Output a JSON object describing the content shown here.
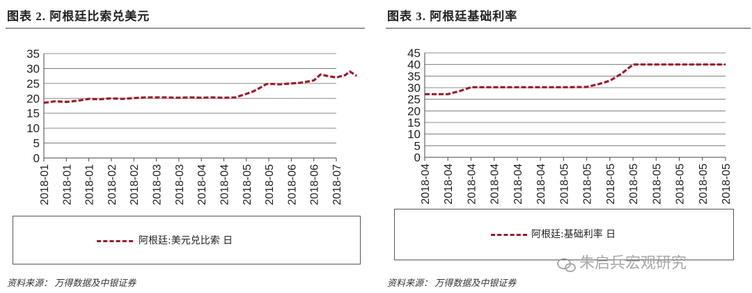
{
  "left": {
    "title": "图表 2. 阿根廷比索兑美元",
    "source": "资料来源： 万得数据及中银证券",
    "legend": "阿根廷:美元兑比索 日"
  },
  "right": {
    "title": "图表 3. 阿根廷基础利率",
    "source": "资料来源： 万得数据及中银证券",
    "legend": "阿根廷:基础利率 日"
  },
  "watermark": "朱启兵宏观研究",
  "chart_data": [
    {
      "type": "line",
      "title": "图表 2. 阿根廷比索兑美元",
      "ylim": [
        0,
        35
      ],
      "yticks": [
        0,
        5,
        10,
        15,
        20,
        25,
        30,
        35
      ],
      "xticks": [
        "2018-01",
        "2018-01",
        "2018-01",
        "2018-02",
        "2018-02",
        "2018-03",
        "2018-03",
        "2018-04",
        "2018-04",
        "2018-05",
        "2018-05",
        "2018-06",
        "2018-06",
        "2018-07"
      ],
      "grid": true,
      "legend_position": "bottom",
      "series": [
        {
          "name": "阿根廷:美元兑比索 日",
          "color": "#9b1b2a",
          "x": [
            0,
            0.5,
            1,
            1.5,
            2,
            2.5,
            3,
            3.5,
            4,
            4.5,
            5,
            5.5,
            6,
            6.5,
            7,
            7.5,
            8,
            8.5,
            9,
            9.3,
            9.6,
            9.9,
            10.2,
            10.5,
            11,
            11.4,
            11.7,
            12,
            12.3,
            12.6,
            13,
            13.4,
            13.6,
            13.9
          ],
          "values": [
            18.5,
            19.0,
            18.8,
            19.2,
            19.8,
            19.7,
            20.0,
            19.8,
            20.1,
            20.3,
            20.3,
            20.3,
            20.2,
            20.3,
            20.2,
            20.3,
            20.2,
            20.3,
            21.5,
            22.3,
            23.5,
            24.8,
            24.8,
            24.7,
            25.0,
            25.2,
            25.6,
            26.0,
            28.0,
            27.5,
            27.0,
            27.8,
            29.0,
            27.5
          ]
        }
      ]
    },
    {
      "type": "line",
      "title": "图表 3. 阿根廷基础利率",
      "ylim": [
        0,
        45
      ],
      "yticks": [
        0,
        5,
        10,
        15,
        20,
        25,
        30,
        35,
        40,
        45
      ],
      "xticks": [
        "2018-04",
        "2018-04",
        "2018-04",
        "2018-04",
        "2018-04",
        "2018-04",
        "2018-05",
        "2018-05",
        "2018-05",
        "2018-05",
        "2018-05",
        "2018-05",
        "2018-05",
        "2018-05"
      ],
      "grid": true,
      "legend_position": "bottom",
      "series": [
        {
          "name": "阿根廷:基础利率 日",
          "color": "#9b1b2a",
          "x": [
            0,
            1,
            1.5,
            2,
            3,
            4,
            5,
            6,
            7,
            7.5,
            8,
            8.5,
            9,
            9.5,
            10,
            11,
            12,
            13
          ],
          "values": [
            27.2,
            27.2,
            28.5,
            30.2,
            30.2,
            30.2,
            30.2,
            30.2,
            30.3,
            31.5,
            33,
            36,
            40,
            40,
            40,
            40,
            40,
            40
          ]
        }
      ]
    }
  ]
}
